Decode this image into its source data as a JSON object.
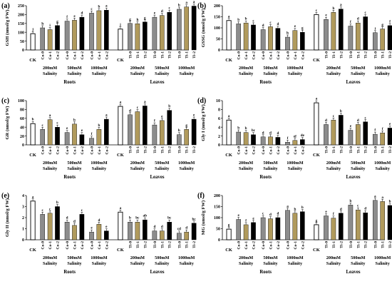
{
  "colors": {
    "ck": "#ffffff",
    "pre0": "#8c8c8c",
    "pre1": "#b09a5c",
    "pre2": "#000000",
    "axis": "#000000"
  },
  "chart_data": [
    {
      "type": "bar",
      "panel_label": "(a)",
      "ylabel": "GSH (nmol/g FW)",
      "ylim": [
        0,
        250
      ],
      "yticks": [
        0,
        50,
        100,
        150,
        200,
        250
      ],
      "tissues": [
        "Roots",
        "Leaves"
      ],
      "treatments": [
        "CK",
        "200mM Salinity",
        "500mM Salinity",
        "1000mM Salinity"
      ],
      "categories": [
        "CK",
        "Co-0",
        "Co-1",
        "Co-2",
        "Co-0",
        "Co-1",
        "Co-2",
        "Co-0",
        "Co-1",
        "Co-2",
        "CK",
        "Ti-0",
        "Ti-1",
        "Ti-2",
        "Ti-0",
        "Ti-1",
        "Ti-2",
        "Ti-0",
        "Ti-1",
        "Ti-2"
      ],
      "values": [
        92,
        125,
        115,
        138,
        163,
        168,
        185,
        208,
        222,
        225,
        118,
        150,
        148,
        158,
        185,
        195,
        213,
        230,
        243,
        248
      ],
      "letters": [
        "j",
        "h",
        "i",
        "g",
        "f",
        "e",
        "d",
        "c",
        "b",
        "a",
        "j",
        "g",
        "h",
        "g",
        "e",
        "d",
        "c",
        "b",
        "a",
        "a"
      ]
    },
    {
      "type": "bar",
      "panel_label": "(b)",
      "ylabel": "GSSG (nmol/g FW)",
      "ylim": [
        0,
        200
      ],
      "yticks": [
        0,
        50,
        100,
        150,
        200
      ],
      "tissues": [
        "Roots",
        "Leaves"
      ],
      "treatments": [
        "CK",
        "200mM Salinity",
        "500mM Salinity",
        "1000mM Salinity"
      ],
      "categories": [
        "CK",
        "Co-0",
        "Co-1",
        "Co-2",
        "Co-0",
        "Co-1",
        "Co-2",
        "Co-0",
        "Co-1",
        "Co-2",
        "CK",
        "Ti-0",
        "Ti-1",
        "Ti-2",
        "Ti-0",
        "Ti-1",
        "Ti-2",
        "Ti-0",
        "Ti-1",
        "Ti-2"
      ],
      "values": [
        133,
        118,
        122,
        113,
        92,
        105,
        98,
        58,
        88,
        80,
        160,
        138,
        170,
        185,
        108,
        122,
        150,
        78,
        95,
        110
      ],
      "letters": [
        "a",
        "b",
        "b",
        "c",
        "d",
        "c",
        "d",
        "h",
        "e",
        "g",
        "c",
        "e",
        "b",
        "a",
        "f",
        "d",
        "c",
        "i",
        "g",
        "f"
      ]
    },
    {
      "type": "bar",
      "panel_label": "(c)",
      "ylabel": "GR (nmol/g FW)",
      "ylim": [
        0,
        100
      ],
      "yticks": [
        0,
        20,
        40,
        60,
        80,
        100
      ],
      "tissues": [
        "Roots",
        "Leaves"
      ],
      "treatments": [
        "CK",
        "200mM Salinity",
        "500mM Salinity",
        "1000mM Salinity"
      ],
      "categories": [
        "CK",
        "Co-0",
        "Co-1",
        "Co-2",
        "Co-0",
        "Co-1",
        "Co-2",
        "Co-0",
        "Co-1",
        "Co-2",
        "CK",
        "Ti-0",
        "Ti-1",
        "Ti-2",
        "Ti-0",
        "Ti-1",
        "Ti-2",
        "Ti-0",
        "Ti-1",
        "Ti-2"
      ],
      "values": [
        48,
        35,
        57,
        40,
        28,
        47,
        23,
        15,
        35,
        58,
        87,
        68,
        75,
        88,
        45,
        55,
        78,
        23,
        35,
        58
      ],
      "letters": [
        "b",
        "c",
        "a",
        "c",
        "e",
        "b",
        "e",
        "f",
        "b",
        "a",
        "a",
        "d",
        "c",
        "a",
        "f",
        "e",
        "b",
        "h",
        "g",
        "e"
      ]
    },
    {
      "type": "bar",
      "panel_label": "(d)",
      "ylabel": "Gly I (nmol/g FW)",
      "ylim": [
        0,
        10
      ],
      "yticks": [
        0,
        2,
        4,
        6,
        8,
        10
      ],
      "tissues": [
        "Roots",
        "Leaves"
      ],
      "treatments": [
        "CK",
        "200mM Salinity",
        "500mM Salinity",
        "1000mM Salinity"
      ],
      "categories": [
        "CK",
        "Co-0",
        "Co-1",
        "Co-2",
        "Co-0",
        "Co-1",
        "Co-2",
        "Co-0",
        "Co-1",
        "Co-2",
        "CK",
        "Ti-0",
        "Ti-1",
        "Ti-2",
        "Ti-0",
        "Ti-1",
        "Ti-2",
        "Ti-0",
        "Ti-1",
        "Ti-2"
      ],
      "values": [
        5.6,
        2.9,
        2.8,
        2.3,
        1.8,
        1.8,
        1.7,
        0.6,
        1.0,
        1.2,
        9.5,
        4.6,
        5.6,
        6.7,
        3.3,
        4.6,
        5.2,
        2.4,
        2.7,
        3.8
      ],
      "letters": [
        "a",
        "b",
        "b",
        "bc",
        "d",
        "d",
        "d",
        "f",
        "ef",
        "de",
        "a",
        "d",
        "c",
        "b",
        "e",
        "d",
        "c",
        "f",
        "f",
        "e"
      ]
    },
    {
      "type": "bar",
      "panel_label": "(e)",
      "ylabel": "Gly II (nmol/g FW)",
      "ylim": [
        0,
        4
      ],
      "yticks": [
        0,
        1,
        2,
        3,
        4
      ],
      "tissues": [
        "Roots",
        "Leaves"
      ],
      "treatments": [
        "CK",
        "200mM Salinity",
        "500mM Salinity",
        "1000mM Salinity"
      ],
      "categories": [
        "CK",
        "Co-0",
        "Co-1",
        "Co-2",
        "Co-0",
        "Co-1",
        "Co-2",
        "Co-0",
        "Co-1",
        "Co-2",
        "CK",
        "Ti-0",
        "Ti-1",
        "Ti-2",
        "Ti-0",
        "Ti-1",
        "Ti-2",
        "Ti-0",
        "Ti-1",
        "Ti-2"
      ],
      "values": [
        3.5,
        2.3,
        2.4,
        3.0,
        1.6,
        1.3,
        2.3,
        0.7,
        1.4,
        0.8,
        2.5,
        1.6,
        1.6,
        1.8,
        0.8,
        0.8,
        1.6,
        0.6,
        0.7,
        1.5
      ],
      "letters": [
        "a",
        "c",
        "c",
        "b",
        "d",
        "d",
        "c",
        "e",
        "d",
        "e",
        "a",
        "b",
        "bc",
        "ab",
        "d",
        "d",
        "bc",
        "cd",
        "d",
        "bc"
      ]
    },
    {
      "type": "bar",
      "panel_label": "(f)",
      "ylabel": "MG (umol/g FW)",
      "ylim": [
        0,
        200
      ],
      "yticks": [
        0,
        50,
        100,
        150,
        200
      ],
      "tissues": [
        "Roots",
        "Leaves"
      ],
      "treatments": [
        "CK",
        "200mM Salinity",
        "500mM Salinity",
        "1000mM Salinity"
      ],
      "categories": [
        "CK",
        "Co-0",
        "Co-1",
        "Co-2",
        "Co-0",
        "Co-1",
        "Co-2",
        "Co-0",
        "Co-1",
        "Co-2",
        "CK",
        "Ti-0",
        "Ti-1",
        "Ti-2",
        "Ti-0",
        "Ti-1",
        "Ti-2",
        "Ti-0",
        "Ti-1",
        "Ti-2"
      ],
      "values": [
        48,
        92,
        68,
        78,
        100,
        95,
        100,
        133,
        120,
        127,
        68,
        108,
        98,
        120,
        157,
        135,
        122,
        178,
        173,
        155
      ],
      "letters": [
        "g",
        "e",
        "f",
        "e",
        "c",
        "d",
        "d",
        "a",
        "b",
        "b",
        "g",
        "e",
        "f",
        "d",
        "b",
        "c",
        "d",
        "a",
        "a",
        "b"
      ]
    }
  ]
}
